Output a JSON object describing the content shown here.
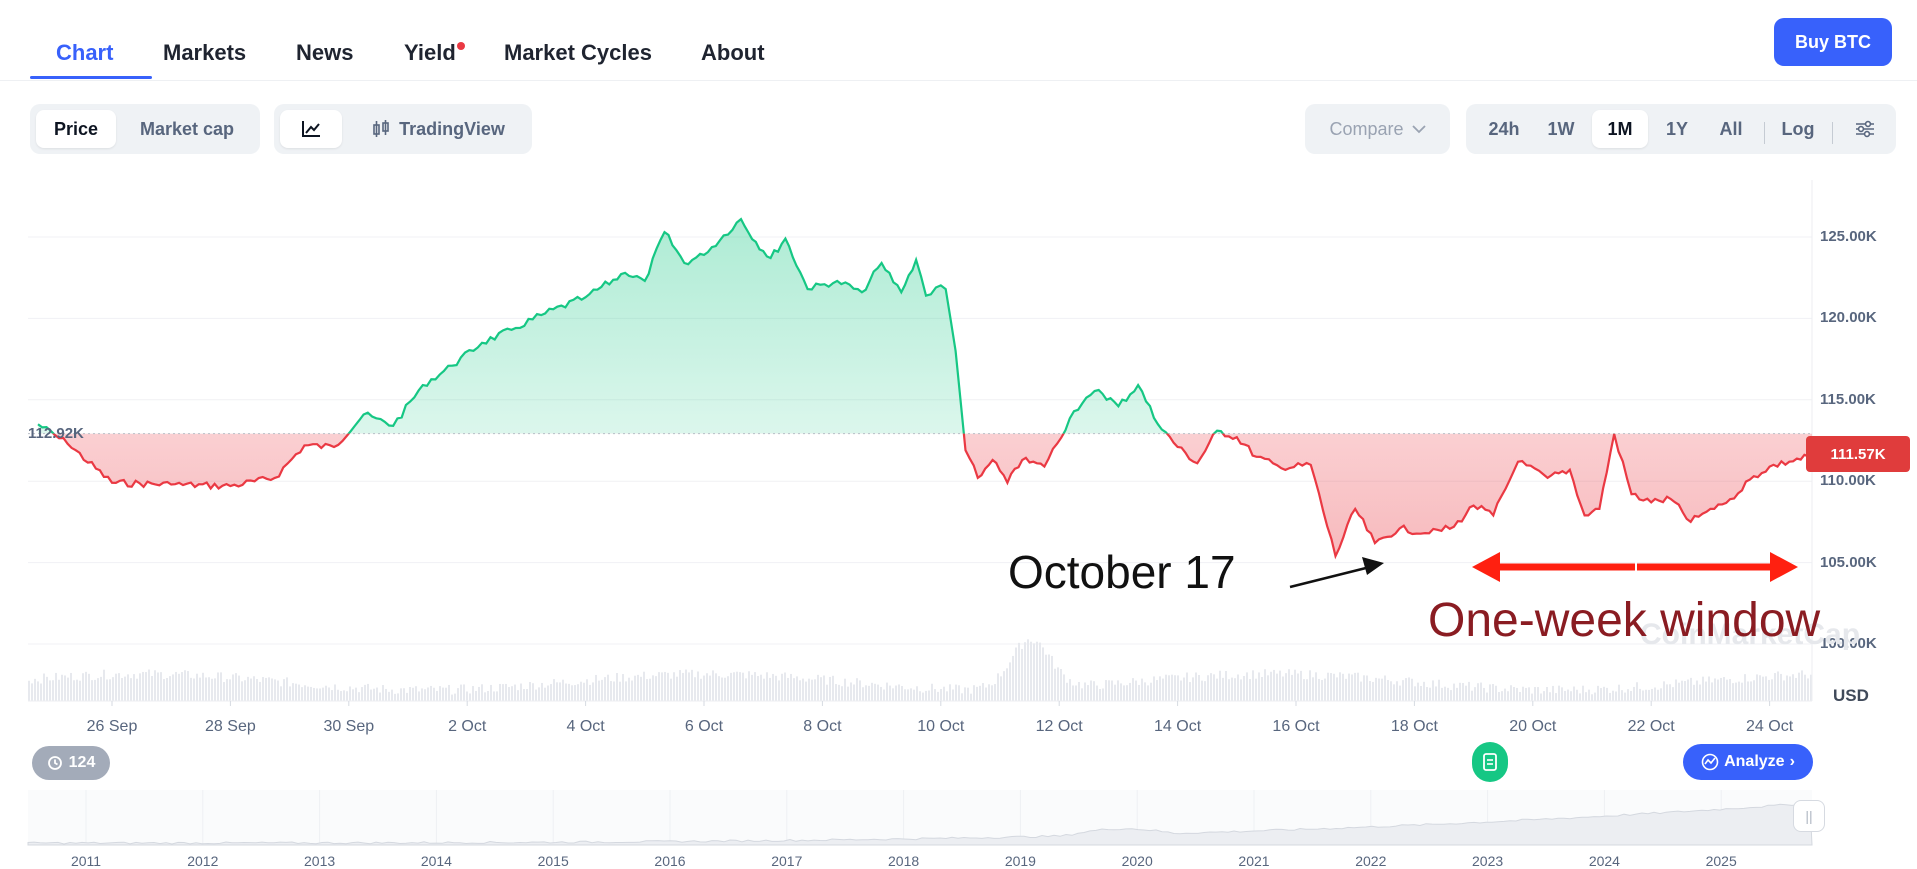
{
  "nav": {
    "tabs": [
      {
        "label": "Chart"
      },
      {
        "label": "Markets"
      },
      {
        "label": "News"
      },
      {
        "label": "Yield"
      },
      {
        "label": "Market Cycles"
      },
      {
        "label": "About"
      }
    ],
    "buy_label": "Buy BTC"
  },
  "toolbar": {
    "price_label": "Price",
    "marketcap_label": "Market cap",
    "tradingview_label": "TradingView",
    "compare_label": "Compare",
    "ranges": [
      "24h",
      "1W",
      "1M",
      "1Y",
      "All"
    ],
    "selected_range": "1M",
    "log_label": "Log"
  },
  "chart_data": {
    "type": "area",
    "title": "",
    "ylabel": "USD",
    "ylim": [
      96500,
      128500
    ],
    "baseline": 112920,
    "baseline_label": "112.92K",
    "current_price_label": "111.57K",
    "colors": {
      "up": "#16c784",
      "down": "#ea3943"
    },
    "yticks": [
      {
        "value": 125000,
        "label": "125.00K"
      },
      {
        "value": 120000,
        "label": "120.00K"
      },
      {
        "value": 115000,
        "label": "115.00K"
      },
      {
        "value": 110000,
        "label": "110.00K"
      },
      {
        "value": 105000,
        "label": "105.00K"
      },
      {
        "value": 100000,
        "label": "100.00K"
      }
    ],
    "xticks": [
      "26 Sep",
      "28 Sep",
      "30 Sep",
      "2 Oct",
      "4 Oct",
      "6 Oct",
      "8 Oct",
      "10 Oct",
      "12 Oct",
      "14 Oct",
      "16 Oct",
      "18 Oct",
      "20 Oct",
      "22 Oct",
      "24 Oct"
    ],
    "series": [
      {
        "x": [
          "25 Sep",
          "25 Sep",
          "26 Sep",
          "27 Sep",
          "28 Sep",
          "29 Sep",
          "29 Sep",
          "30 Sep",
          "30 Sep",
          "1 Oct",
          "1 Oct",
          "2 Oct",
          "2 Oct",
          "3 Oct",
          "3 Oct",
          "4 Oct",
          "5 Oct",
          "5 Oct",
          "5 Oct",
          "6 Oct",
          "6 Oct",
          "6 Oct",
          "7 Oct",
          "7 Oct",
          "7 Oct",
          "7 Oct",
          "8 Oct",
          "8 Oct",
          "9 Oct",
          "9 Oct",
          "9 Oct",
          "10 Oct",
          "10 Oct",
          "10 Oct",
          "10 Oct",
          "10 Oct",
          "10 Oct",
          "11 Oct",
          "11 Oct",
          "11 Oct",
          "11 Oct",
          "12 Oct",
          "12 Oct",
          "13 Oct",
          "13 Oct",
          "13 Oct",
          "14 Oct",
          "14 Oct",
          "14 Oct",
          "15 Oct",
          "15 Oct",
          "15 Oct",
          "16 Oct",
          "16 Oct",
          "17 Oct",
          "17 Oct",
          "17 Oct",
          "18 Oct",
          "18 Oct",
          "19 Oct",
          "19 Oct",
          "19 Oct",
          "20 Oct",
          "20 Oct",
          "21 Oct",
          "21 Oct",
          "21 Oct",
          "21 Oct",
          "22 Oct",
          "22 Oct",
          "22 Oct",
          "23 Oct",
          "23 Oct",
          "23 Oct",
          "24 Oct",
          "24 Oct",
          "24 Oct",
          "25 Oct"
        ],
        "values": [
          113500,
          112300,
          109900,
          109800,
          109700,
          110200,
          112200,
          112100,
          114100,
          113400,
          115900,
          117100,
          118500,
          119300,
          120200,
          121300,
          122800,
          122300,
          125300,
          123400,
          123900,
          125100,
          126100,
          124700,
          123700,
          124900,
          121800,
          122300,
          121600,
          123400,
          121600,
          123600,
          121400,
          121900,
          121800,
          118000,
          111900,
          110200,
          111300,
          109900,
          111300,
          110900,
          114300,
          115600,
          114600,
          115900,
          113500,
          112100,
          111100,
          113100,
          112700,
          111500,
          110800,
          111000,
          105400,
          108300,
          106200,
          107100,
          106800,
          107200,
          108500,
          107900,
          111200,
          110200,
          110700,
          107900,
          108300,
          112900,
          109200,
          108700,
          108900,
          107500,
          108300,
          108900,
          110100,
          110900,
          111200,
          111570
        ]
      }
    ],
    "volume_peak_date": "11 Oct",
    "navigator_years": [
      "2011",
      "2012",
      "2013",
      "2014",
      "2015",
      "2016",
      "2017",
      "2018",
      "2019",
      "2020",
      "2021",
      "2022",
      "2023",
      "2024",
      "2025"
    ]
  },
  "annotations": {
    "october_label": "October 17",
    "window_label": "One-week window"
  },
  "badges": {
    "history_count": "124",
    "analyze_label": "Analyze"
  },
  "watermark": "CoinMarketCap"
}
